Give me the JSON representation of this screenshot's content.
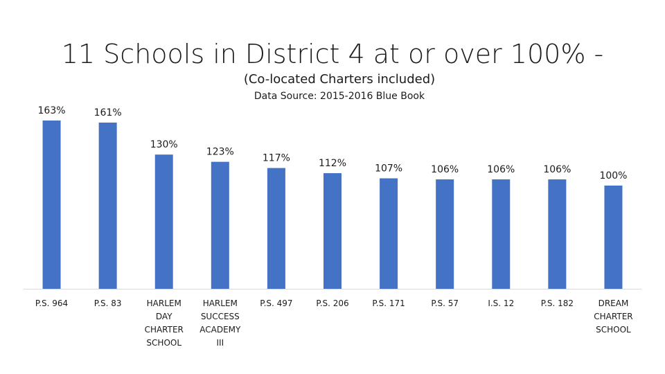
{
  "chart_data": {
    "type": "bar",
    "title": "11 Schools in District 4 at or over 100% -",
    "subtitle": "(Co-located Charters included)",
    "source": "Data Source: 2015-2016 Blue Book",
    "categories": [
      "P.S. 964",
      "P.S. 83",
      "HARLEM DAY CHARTER SCHOOL",
      "HARLEM SUCCESS ACADEMY III",
      "P.S. 497",
      "P.S. 206",
      "P.S. 171",
      "P.S. 57",
      "I.S. 12",
      "P.S. 182",
      "DREAM CHARTER SCHOOL"
    ],
    "category_lines": [
      [
        "P.S. 964"
      ],
      [
        "P.S. 83"
      ],
      [
        "HARLEM",
        "DAY",
        "CHARTER",
        "SCHOOL"
      ],
      [
        "HARLEM",
        "SUCCESS",
        "ACADEMY",
        "III"
      ],
      [
        "P.S. 497"
      ],
      [
        "P.S. 206"
      ],
      [
        "P.S. 171"
      ],
      [
        "P.S. 57"
      ],
      [
        "I.S. 12"
      ],
      [
        "P.S. 182"
      ],
      [
        "DREAM",
        "CHARTER",
        "SCHOOL"
      ]
    ],
    "values": [
      163,
      161,
      130,
      123,
      117,
      112,
      107,
      106,
      106,
      106,
      100
    ],
    "data_labels": [
      "163%",
      "161%",
      "130%",
      "123%",
      "117%",
      "112%",
      "107%",
      "106%",
      "106%",
      "106%",
      "100%"
    ],
    "ylabel": "",
    "xlabel": "",
    "grid": false,
    "legend": "none",
    "bar_color": "#4472C4",
    "axis_color": "#D9D9D9"
  }
}
